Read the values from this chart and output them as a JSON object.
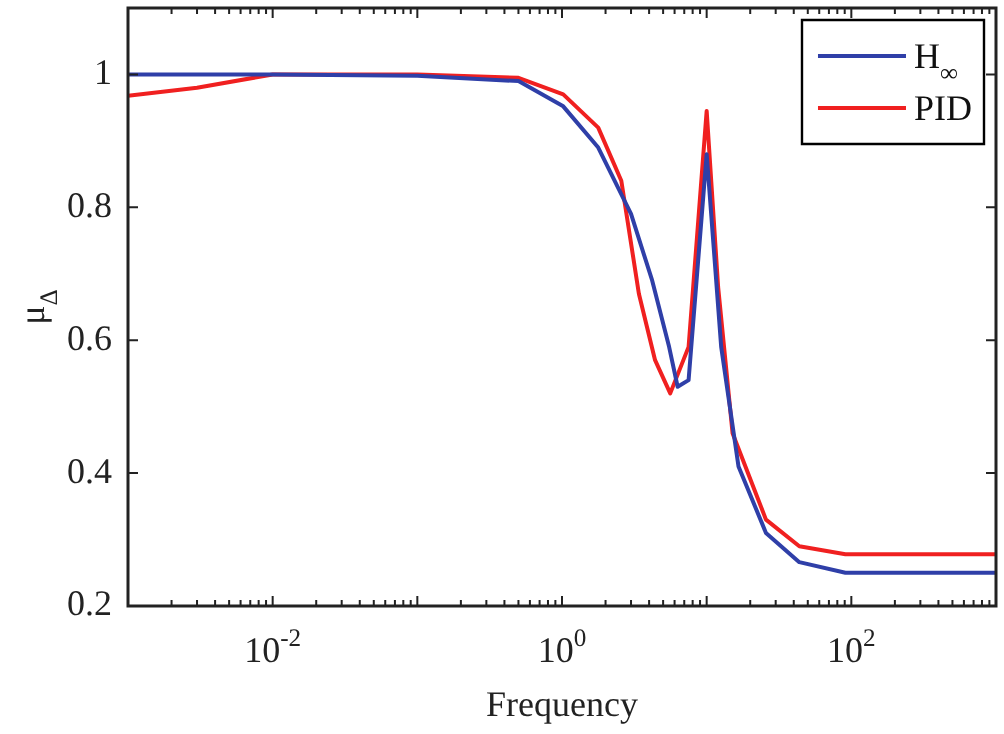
{
  "chart_data": {
    "type": "line",
    "xlabel": "Frequency",
    "ylabel": "μ$_{Δ}$",
    "log": "x",
    "xlim": [
      0.001,
      1000
    ],
    "ylim": [
      0.2,
      1.1
    ],
    "xticks": [
      {
        "value": 0.01,
        "label": "10$^{-2}$"
      },
      {
        "value": 1,
        "label": "10$^{0}$"
      },
      {
        "value": 100,
        "label": "10$^{2}$"
      }
    ],
    "yticks": [
      0.2,
      0.4,
      0.6,
      0.8,
      1
    ],
    "legend": "top right",
    "grid": false,
    "marker": "none",
    "line_style": "solid",
    "series": [
      {
        "name": "H$_{∞}$",
        "color": "#2f3fa8",
        "x": [
          0.001,
          0.01,
          0.1,
          0.5,
          1.02,
          1.78,
          3.0,
          4.2,
          5.5,
          6.3,
          7.5,
          10,
          12.6,
          16.6,
          25.7,
          43.7,
          91,
          1000
        ],
        "values": [
          1,
          1,
          0.998,
          0.99,
          0.952,
          0.89,
          0.79,
          0.69,
          0.59,
          0.53,
          0.54,
          0.88,
          0.59,
          0.41,
          0.31,
          0.266,
          0.25,
          0.25
        ]
      },
      {
        "name": "PID",
        "color": "#f02020",
        "x": [
          0.001,
          0.003,
          0.01,
          0.1,
          0.5,
          1.02,
          1.78,
          2.57,
          3.4,
          4.4,
          5.6,
          7.5,
          10,
          12,
          15.1,
          25.7,
          43.7,
          91,
          1000
        ],
        "values": [
          0.968,
          0.98,
          1,
          1,
          0.995,
          0.97,
          0.92,
          0.84,
          0.67,
          0.57,
          0.52,
          0.59,
          0.945,
          0.68,
          0.46,
          0.33,
          0.29,
          0.278,
          0.278
        ]
      }
    ]
  }
}
